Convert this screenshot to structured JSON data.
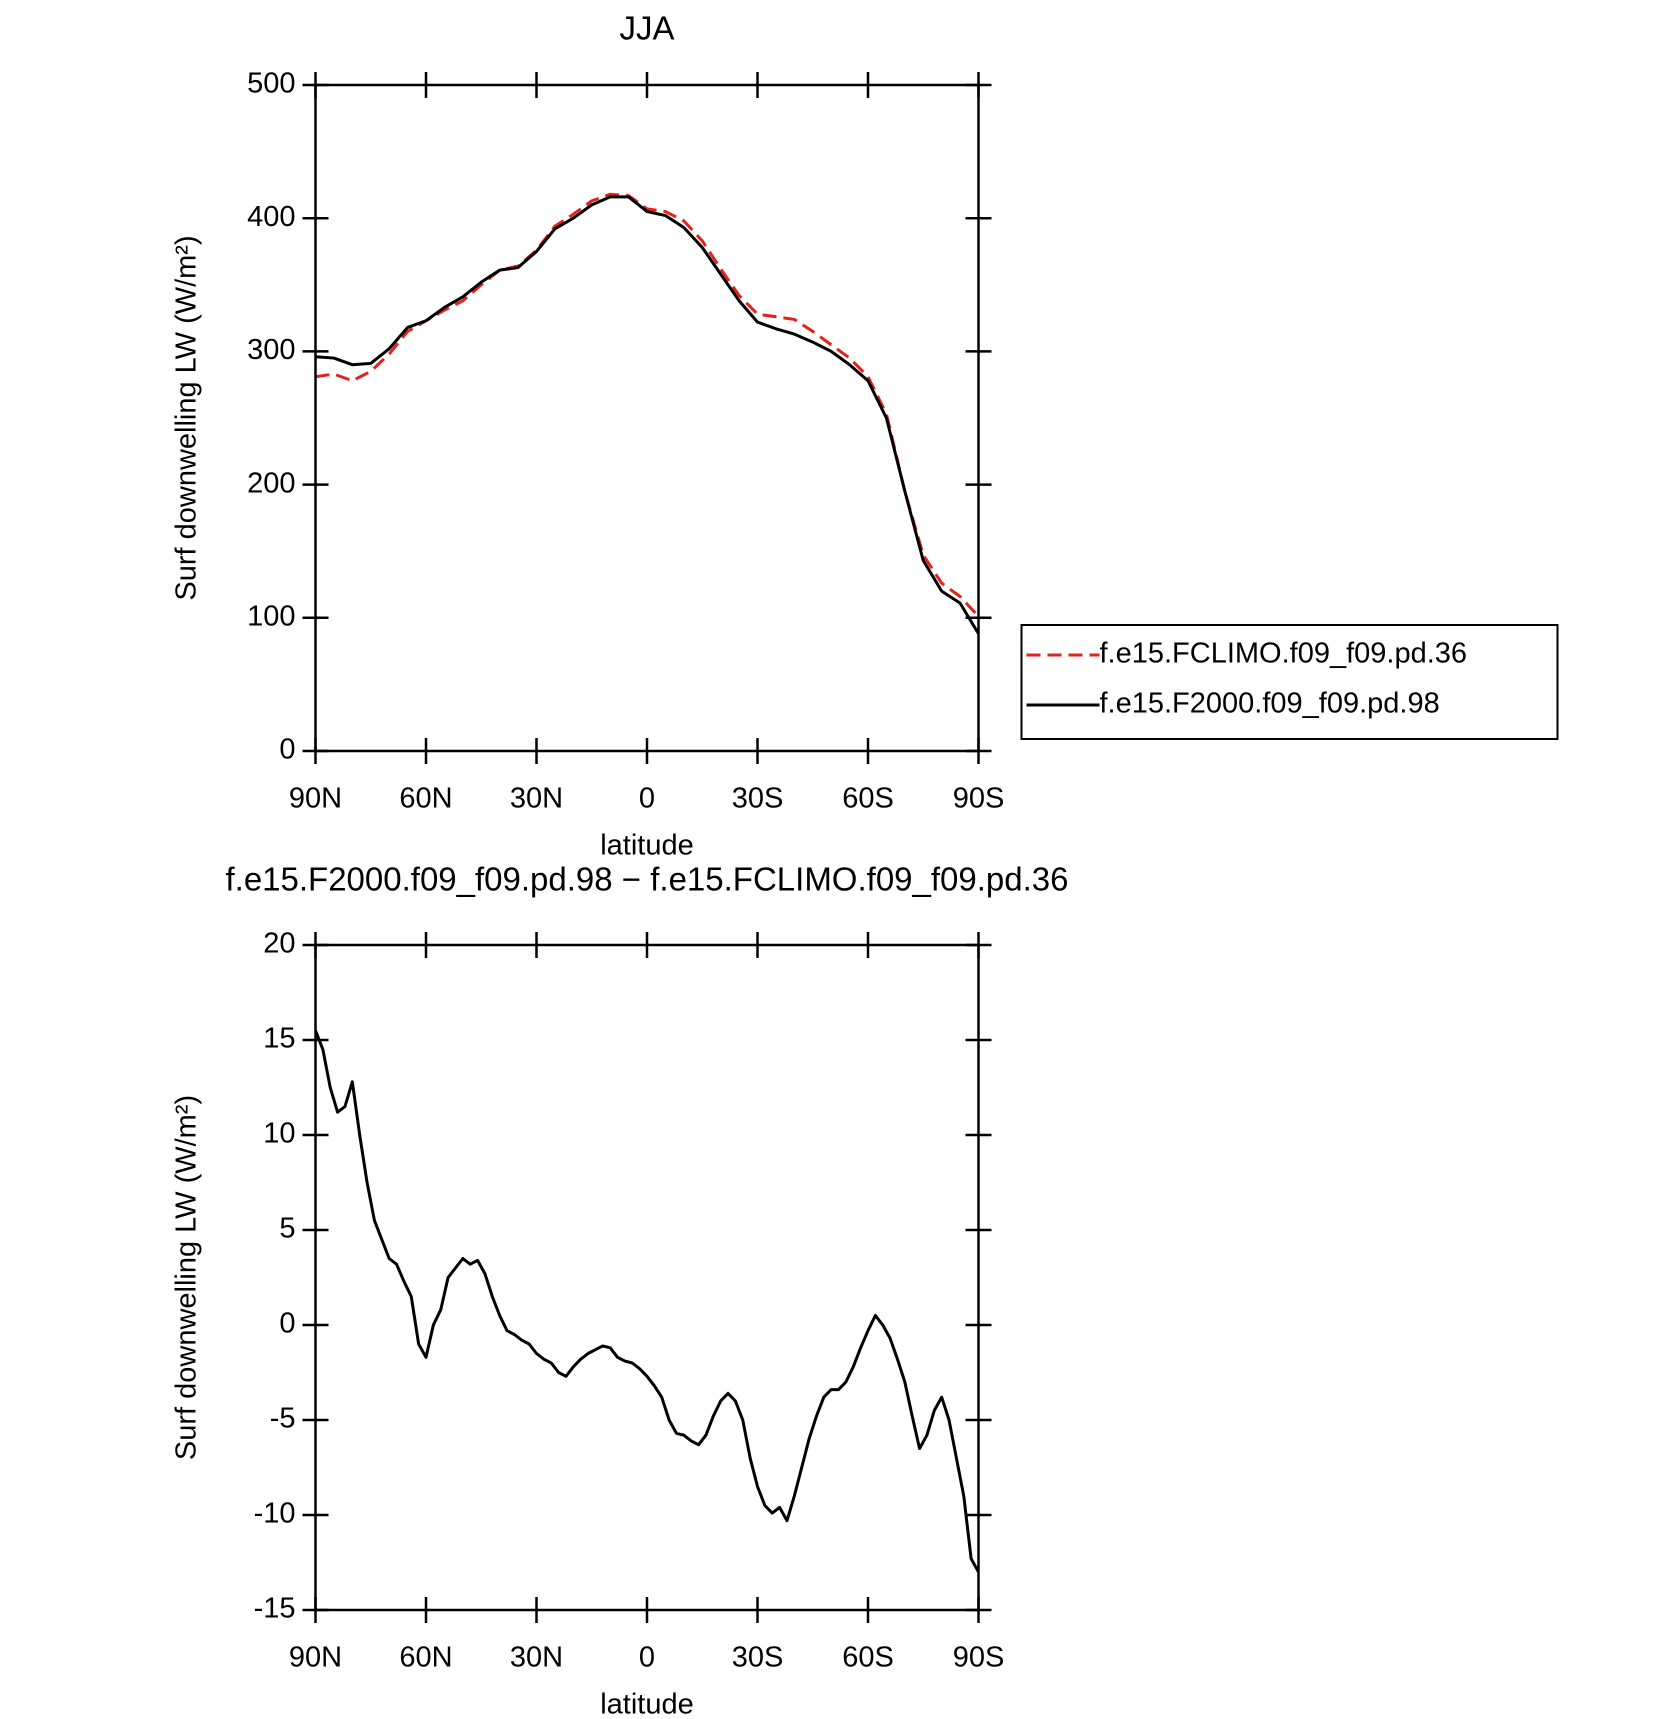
{
  "chart_data": [
    {
      "type": "line",
      "title": "JJA",
      "ylabel": "Surf downwelling LW (W/m²)",
      "xlabel": "latitude",
      "x": [
        90,
        85,
        80,
        75,
        70,
        65,
        60,
        55,
        50,
        45,
        40,
        35,
        30,
        25,
        20,
        15,
        10,
        5,
        0,
        -5,
        -10,
        -15,
        -20,
        -25,
        -30,
        -35,
        -40,
        -45,
        -50,
        -55,
        -60,
        -65,
        -70,
        -75,
        -80,
        -85,
        -90
      ],
      "series": [
        {
          "name": "f.e15.FCLIMO.f09_f09.pd.36",
          "color": "#e8201c",
          "style": "dashed",
          "values": [
            281,
            283,
            278,
            285,
            298,
            315,
            323,
            331,
            338,
            350,
            361,
            364,
            376,
            394,
            403,
            413,
            418,
            417,
            407,
            405,
            398,
            383,
            362,
            342,
            328,
            326,
            324,
            315,
            305,
            295,
            281,
            253,
            195,
            147,
            126,
            116,
            101
          ]
        },
        {
          "name": "f.e15.F2000.f09_f09.pd.98",
          "color": "#000000",
          "style": "solid",
          "values": [
            296,
            295,
            290,
            291,
            302,
            318,
            323,
            333,
            341,
            352,
            361,
            363,
            375,
            392,
            400,
            410,
            416,
            416,
            405,
            402,
            393,
            378,
            358,
            338,
            322,
            317,
            313,
            307,
            300,
            290,
            278,
            250,
            195,
            143,
            120,
            111,
            88
          ]
        }
      ],
      "xlim": [
        90,
        -90
      ],
      "xticks": [
        {
          "value": 90,
          "label": "90N"
        },
        {
          "value": 60,
          "label": "60N"
        },
        {
          "value": 30,
          "label": "30N"
        },
        0,
        {
          "value": -30,
          "label": "30S"
        },
        {
          "value": -60,
          "label": "60S"
        },
        {
          "value": -90,
          "label": "90S"
        }
      ],
      "ylim": [
        0,
        500
      ],
      "yticks": [
        0,
        100,
        200,
        300,
        400,
        500
      ],
      "legend": "right"
    },
    {
      "type": "line",
      "title": "f.e15.F2000.f09_f09.pd.98 − f.e15.FCLIMO.f09_f09.pd.36",
      "ylabel": "Surf downwelling LW (W/m²)",
      "xlabel": "latitude",
      "x": [
        90,
        88,
        86,
        84,
        82,
        80,
        78,
        76,
        74,
        72,
        70,
        68,
        66,
        64,
        62,
        60,
        58,
        56,
        54,
        52,
        50,
        48,
        46,
        44,
        42,
        40,
        38,
        36,
        34,
        32,
        30,
        28,
        26,
        24,
        22,
        20,
        18,
        16,
        14,
        12,
        10,
        8,
        6,
        4,
        2,
        0,
        -2,
        -4,
        -6,
        -8,
        -10,
        -12,
        -14,
        -16,
        -18,
        -20,
        -22,
        -24,
        -26,
        -28,
        -30,
        -32,
        -34,
        -36,
        -38,
        -40,
        -42,
        -44,
        -46,
        -48,
        -50,
        -52,
        -54,
        -56,
        -58,
        -60,
        -62,
        -64,
        -66,
        -68,
        -70,
        -72,
        -74,
        -76,
        -78,
        -80,
        -82,
        -84,
        -86,
        -88,
        -90
      ],
      "values": [
        15.5,
        14.5,
        12.5,
        11.2,
        11.5,
        12.8,
        10,
        7.5,
        5.5,
        4.5,
        3.5,
        3.2,
        2.3,
        1.5,
        -1,
        -1.7,
        0,
        0.8,
        2.5,
        3,
        3.5,
        3.2,
        3.4,
        2.7,
        1.5,
        0.5,
        -0.3,
        -0.5,
        -0.8,
        -1,
        -1.5,
        -1.8,
        -2,
        -2.5,
        -2.7,
        -2.2,
        -1.8,
        -1.5,
        -1.3,
        -1.1,
        -1.2,
        -1.7,
        -1.9,
        -2,
        -2.3,
        -2.7,
        -3.2,
        -3.8,
        -5,
        -5.7,
        -5.8,
        -6.1,
        -6.3,
        -5.8,
        -4.8,
        -4,
        -3.6,
        -4,
        -5,
        -7,
        -8.5,
        -9.5,
        -9.9,
        -9.6,
        -10.3,
        -9,
        -7.5,
        -6,
        -4.8,
        -3.8,
        -3.4,
        -3.4,
        -3,
        -2.2,
        -1.2,
        -0.3,
        0.5,
        0,
        -0.7,
        -1.8,
        -3,
        -4.8,
        -6.5,
        -5.8,
        -4.5,
        -3.8,
        -5,
        -7,
        -9,
        -12.3,
        -13
      ],
      "color": "#000000",
      "xlim": [
        90,
        -90
      ],
      "xticks": [
        {
          "value": 90,
          "label": "90N"
        },
        {
          "value": 60,
          "label": "60N"
        },
        {
          "value": 30,
          "label": "30N"
        },
        0,
        {
          "value": -30,
          "label": "30S"
        },
        {
          "value": -60,
          "label": "60S"
        },
        {
          "value": -90,
          "label": "90S"
        }
      ],
      "ylim": [
        -15,
        20
      ],
      "yticks": [
        -15,
        -10,
        -5,
        0,
        5,
        10,
        15,
        20
      ]
    }
  ]
}
